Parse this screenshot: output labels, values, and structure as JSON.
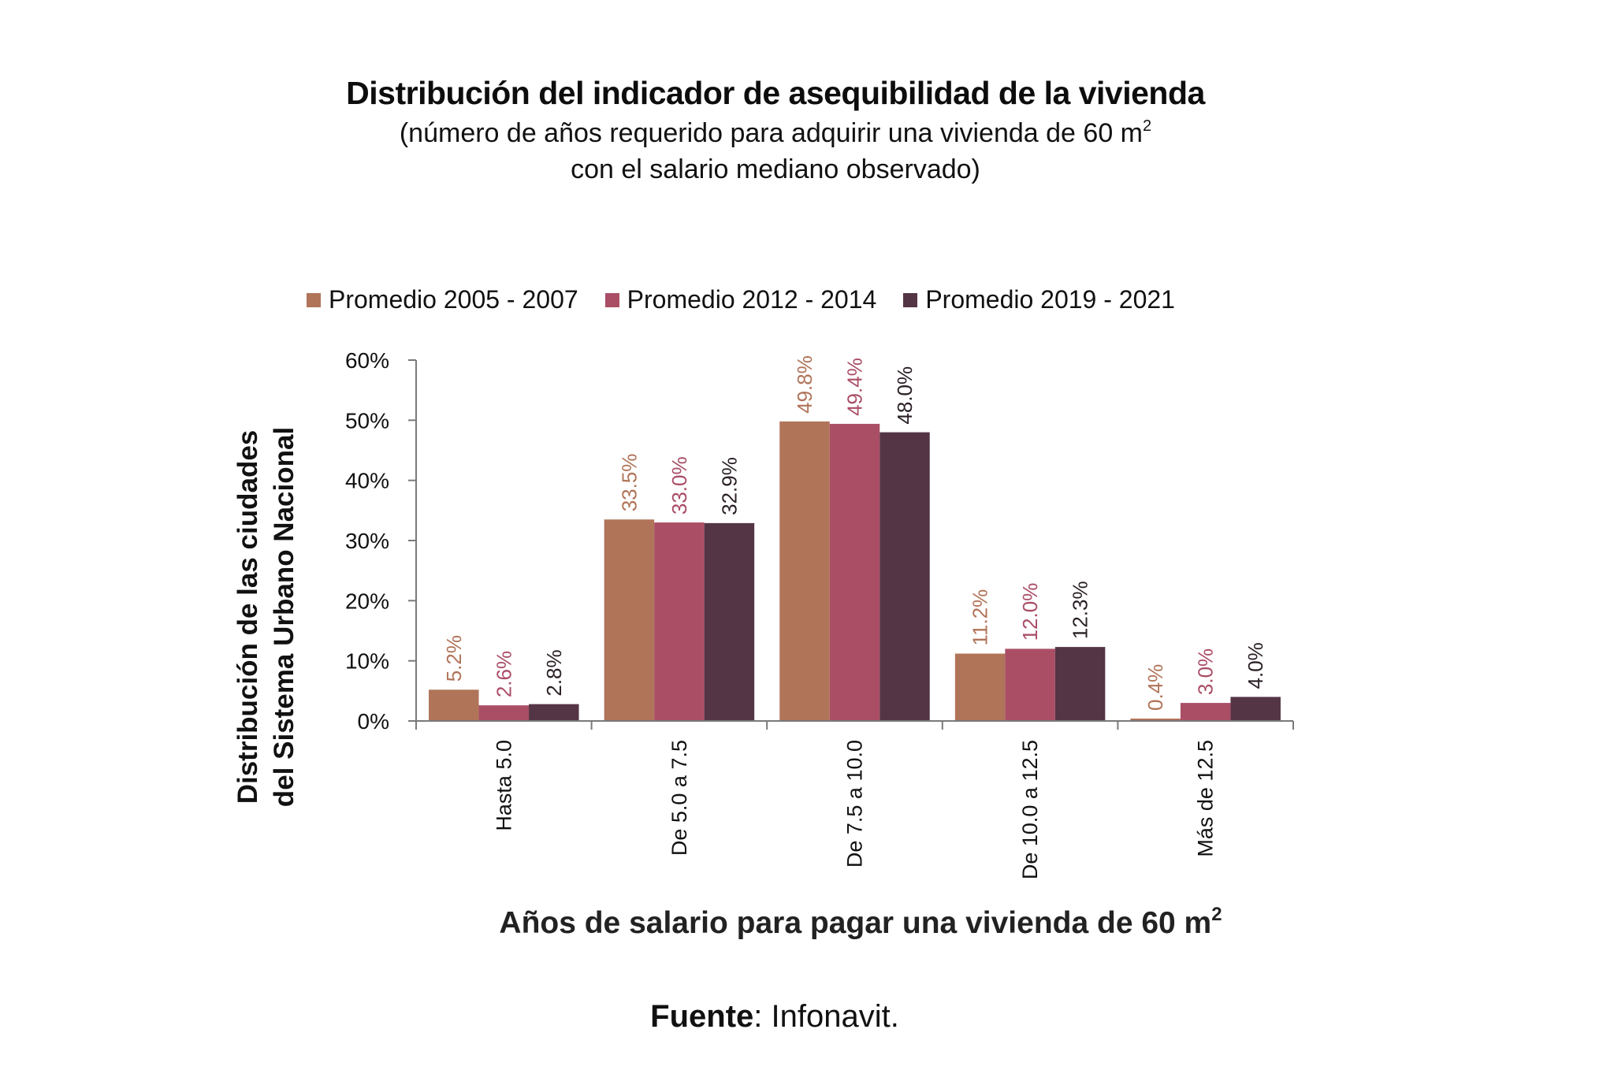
{
  "title": "Distribución del indicador de asequibilidad de la vivienda",
  "subtitle_line1": "(número de años requerido para adquirir una vivienda de 60 m",
  "subtitle_line1_sup": "2",
  "subtitle_line2": "con el salario mediano observado)",
  "source_label": "Fuente",
  "source_value": ": Infonavit.",
  "chart_data": {
    "type": "bar",
    "title": "Distribución del indicador de asequibilidad de la vivienda",
    "xlabel": "Años de salario para pagar una vivienda de 60 m",
    "xlabel_sup": "2",
    "ylabel_line1": "Distribución de las ciudades",
    "ylabel_line2": "del Sistema Urbano Nacional",
    "ylim": [
      0,
      60
    ],
    "yticks": [
      0,
      10,
      20,
      30,
      40,
      50,
      60
    ],
    "ytick_labels": [
      "0%",
      "10%",
      "20%",
      "30%",
      "40%",
      "50%",
      "60%"
    ],
    "grid": false,
    "legend_position": "top",
    "categories": [
      "Hasta 5.0",
      "De 5.0 a 7.5",
      "De 7.5 a 10.0",
      "De 10.0 a 12.5",
      "Más de 12.5"
    ],
    "series": [
      {
        "name": "Promedio 2005 - 2007",
        "color": "#B07459",
        "label_color": "#B07459",
        "values": [
          5.2,
          33.5,
          49.8,
          11.2,
          0.4
        ],
        "labels": [
          "5.2%",
          "33.5%",
          "49.8%",
          "11.2%",
          "0.4%"
        ]
      },
      {
        "name": "Promedio 2012 - 2014",
        "color": "#AA4E66",
        "label_color": "#AA4E66",
        "values": [
          2.6,
          33.0,
          49.4,
          12.0,
          3.0
        ],
        "labels": [
          "2.6%",
          "33.0%",
          "49.4%",
          "12.0%",
          "3.0%"
        ]
      },
      {
        "name": "Promedio 2019 - 2021",
        "color": "#543545",
        "label_color": "#2a1f26",
        "values": [
          2.8,
          32.9,
          48.0,
          12.3,
          4.0
        ],
        "labels": [
          "2.8%",
          "32.9%",
          "48.0%",
          "12.3%",
          "4.0%"
        ]
      }
    ]
  }
}
